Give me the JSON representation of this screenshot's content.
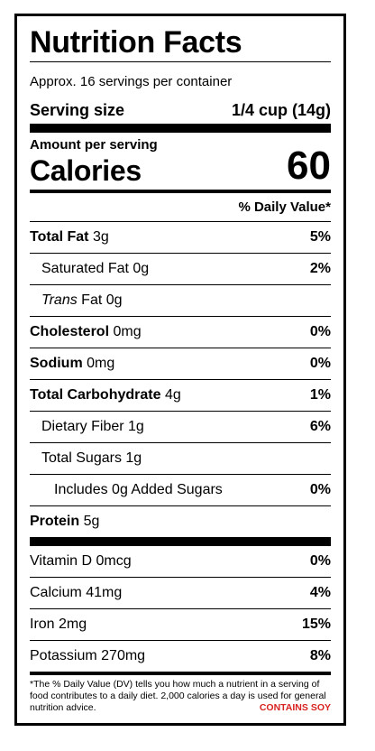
{
  "title": "Nutrition Facts",
  "servings_per_container": "Approx. 16 servings per container",
  "serving_size": {
    "label": "Serving size",
    "value": "1/4 cup (14g)"
  },
  "amount_per_serving": "Amount per serving",
  "calories": {
    "label": "Calories",
    "value": "60"
  },
  "daily_value_header": "% Daily Value*",
  "nutrients": [
    {
      "name": "Total Fat",
      "amount": "3g",
      "dv": "5%"
    },
    {
      "name": "Saturated Fat",
      "amount": "0g",
      "dv": "2%"
    },
    {
      "name_italic": "Trans",
      "name": "Fat",
      "amount": "0g",
      "dv": ""
    },
    {
      "name": "Cholesterol",
      "amount": "0mg",
      "dv": "0%"
    },
    {
      "name": "Sodium",
      "amount": "0mg",
      "dv": "0%"
    },
    {
      "name": "Total Carbohydrate",
      "amount": "4g",
      "dv": "1%"
    },
    {
      "name": "Dietary Fiber",
      "amount": "1g",
      "dv": "6%"
    },
    {
      "name": "Total Sugars",
      "amount": "1g",
      "dv": ""
    },
    {
      "name": "Includes 0g Added Sugars",
      "amount": "",
      "dv": "0%"
    },
    {
      "name": "Protein",
      "amount": "5g",
      "dv": ""
    }
  ],
  "vitamins": [
    {
      "name": "Vitamin D",
      "amount": "0mcg",
      "dv": "0%"
    },
    {
      "name": "Calcium",
      "amount": "41mg",
      "dv": "4%"
    },
    {
      "name": "Iron",
      "amount": "2mg",
      "dv": "15%"
    },
    {
      "name": "Potassium",
      "amount": "270mg",
      "dv": "8%"
    }
  ],
  "footnote": "*The % Daily Value (DV) tells you how much a nutrient in a serving of food contributes to a daily diet. 2,000 calories a day is used for general nutrition advice.",
  "allergen": "CONTAINS SOY",
  "colors": {
    "text": "#000000",
    "background": "#ffffff",
    "allergen": "#d7221f"
  }
}
